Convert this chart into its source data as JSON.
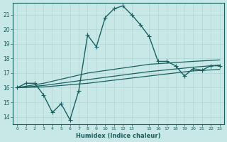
{
  "bg_color": "#c8e8e8",
  "grid_color": "#b0d4d4",
  "line_color": "#1a6060",
  "xlabel": "Humidex (Indice chaleur)",
  "ylabel_ticks": [
    14,
    15,
    16,
    17,
    18,
    19,
    20,
    21
  ],
  "xlim": [
    -0.5,
    23.5
  ],
  "ylim": [
    13.5,
    21.8
  ],
  "xtick_positions": [
    0,
    1,
    2,
    3,
    4,
    5,
    6,
    7,
    8,
    9,
    10,
    11,
    12,
    13,
    15,
    16,
    17,
    18,
    19,
    20,
    21,
    22,
    23
  ],
  "xtick_labels": [
    "0",
    "1",
    "2",
    "3",
    "4",
    "5",
    "6",
    "7",
    "8",
    "9",
    "10",
    "11",
    "12",
    "13",
    "15",
    "16",
    "17",
    "18",
    "19",
    "20",
    "21",
    "22",
    "23"
  ],
  "lines": [
    {
      "x": [
        0,
        1,
        2,
        3,
        4,
        5,
        6,
        7,
        8,
        9,
        10,
        11,
        12,
        13,
        14,
        15,
        16,
        17,
        18,
        19,
        20,
        21,
        22,
        23
      ],
      "y": [
        16.0,
        16.3,
        16.3,
        15.5,
        14.3,
        14.9,
        13.8,
        15.8,
        19.6,
        18.8,
        20.8,
        21.4,
        21.6,
        21.0,
        20.3,
        19.5,
        17.8,
        17.8,
        17.5,
        16.8,
        17.3,
        17.2,
        17.5,
        17.5
      ],
      "marker": "+",
      "linewidth": 1.0,
      "markersize": 4
    },
    {
      "x": [
        0,
        3,
        8,
        15,
        20,
        23
      ],
      "y": [
        16.0,
        16.3,
        17.0,
        17.6,
        17.8,
        17.9
      ],
      "marker": null,
      "linewidth": 0.9,
      "markersize": null
    },
    {
      "x": [
        0,
        3,
        8,
        15,
        20,
        23
      ],
      "y": [
        16.0,
        16.15,
        16.55,
        17.1,
        17.4,
        17.55
      ],
      "marker": null,
      "linewidth": 0.9,
      "markersize": null
    },
    {
      "x": [
        0,
        3,
        8,
        15,
        20,
        23
      ],
      "y": [
        16.0,
        16.05,
        16.3,
        16.8,
        17.15,
        17.25
      ],
      "marker": null,
      "linewidth": 0.9,
      "markersize": null
    }
  ]
}
